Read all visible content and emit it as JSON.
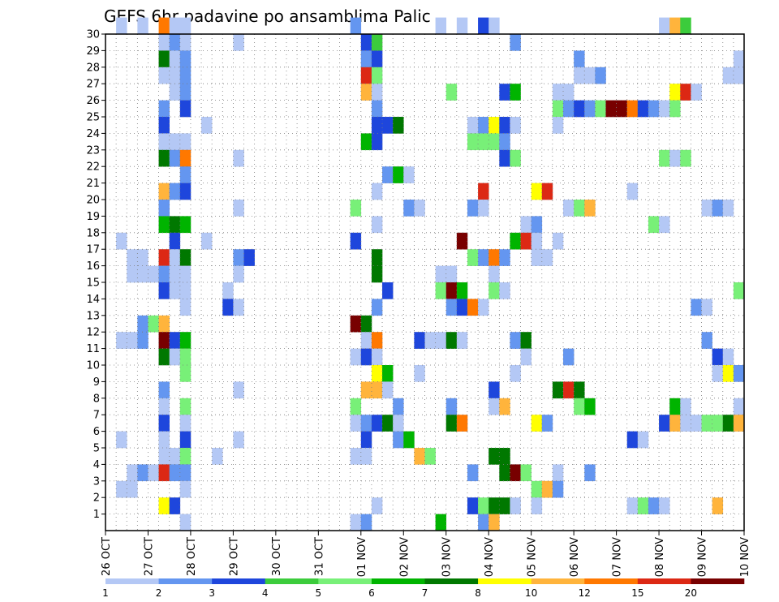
{
  "chart_data": {
    "type": "heatmap",
    "title": "GEFS 6hr padavine po ansamblima Palic",
    "xlabel": "",
    "ylabel": "",
    "x_ticks": [
      "26 OCT",
      "27 OCT",
      "28 OCT",
      "29 OCT",
      "30 OCT",
      "31 OCT",
      "01 NOV",
      "02 NOV",
      "03 NOV",
      "04 NOV",
      "05 NOV",
      "06 NOV",
      "07 NOV",
      "08 NOV",
      "09 NOV",
      "10 NOV"
    ],
    "y_ticks": [
      1,
      2,
      3,
      4,
      5,
      6,
      7,
      8,
      9,
      10,
      11,
      12,
      13,
      14,
      15,
      16,
      17,
      18,
      19,
      20,
      21,
      22,
      23,
      24,
      25,
      26,
      27,
      28,
      29,
      30
    ],
    "xlim": [
      0,
      60
    ],
    "ylim": [
      0,
      30
    ],
    "grid": true,
    "legend": "colorbar-bottom",
    "levels": [
      1,
      2,
      3,
      4,
      5,
      6,
      7,
      8,
      10,
      12,
      15,
      20
    ],
    "level_labels": [
      "1",
      "2",
      "3",
      "4",
      "5",
      "6",
      "7",
      "8",
      "10",
      "12",
      "15",
      "20"
    ],
    "colors": [
      "#b4c8f5",
      "#6496f0",
      "#1e46dc",
      "#3ccc3c",
      "#78f078",
      "#00b400",
      "#007800",
      "#ffff00",
      "#ffb43c",
      "#ff7800",
      "#dc2814",
      "#780000"
    ],
    "cells": [
      [
        1,
        30,
        0
      ],
      [
        3,
        30,
        0
      ],
      [
        5,
        30,
        9
      ],
      [
        6,
        30,
        0
      ],
      [
        7,
        30,
        0
      ],
      [
        23,
        30,
        1
      ],
      [
        31,
        30,
        0
      ],
      [
        33,
        30,
        0
      ],
      [
        35,
        30,
        2
      ],
      [
        36,
        30,
        0
      ],
      [
        52,
        30,
        0
      ],
      [
        53,
        30,
        8
      ],
      [
        54,
        30,
        3
      ],
      [
        5,
        29,
        0
      ],
      [
        6,
        29,
        1
      ],
      [
        7,
        29,
        0
      ],
      [
        12,
        29,
        0
      ],
      [
        24,
        29,
        2
      ],
      [
        25,
        29,
        3
      ],
      [
        38,
        29,
        1
      ],
      [
        5,
        28,
        6
      ],
      [
        6,
        28,
        0
      ],
      [
        7,
        28,
        1
      ],
      [
        24,
        28,
        1
      ],
      [
        25,
        28,
        2
      ],
      [
        44,
        28,
        1
      ],
      [
        59,
        28,
        0
      ],
      [
        5,
        27,
        0
      ],
      [
        6,
        27,
        0
      ],
      [
        7,
        27,
        1
      ],
      [
        24,
        27,
        10
      ],
      [
        25,
        27,
        4
      ],
      [
        44,
        27,
        0
      ],
      [
        45,
        27,
        0
      ],
      [
        46,
        27,
        1
      ],
      [
        58,
        27,
        0
      ],
      [
        59,
        27,
        0
      ],
      [
        6,
        26,
        0
      ],
      [
        7,
        26,
        1
      ],
      [
        24,
        26,
        8
      ],
      [
        25,
        26,
        0
      ],
      [
        32,
        26,
        4
      ],
      [
        37,
        26,
        2
      ],
      [
        38,
        26,
        5
      ],
      [
        42,
        26,
        0
      ],
      [
        43,
        26,
        0
      ],
      [
        53,
        26,
        7
      ],
      [
        54,
        26,
        10
      ],
      [
        55,
        26,
        0
      ],
      [
        5,
        25,
        1
      ],
      [
        7,
        25,
        2
      ],
      [
        25,
        25,
        1
      ],
      [
        42,
        25,
        4
      ],
      [
        43,
        25,
        1
      ],
      [
        44,
        25,
        2
      ],
      [
        45,
        25,
        1
      ],
      [
        46,
        25,
        4
      ],
      [
        47,
        25,
        11
      ],
      [
        48,
        25,
        11
      ],
      [
        49,
        25,
        9
      ],
      [
        50,
        25,
        2
      ],
      [
        51,
        25,
        1
      ],
      [
        52,
        25,
        0
      ],
      [
        53,
        25,
        4
      ],
      [
        5,
        24,
        2
      ],
      [
        9,
        24,
        0
      ],
      [
        25,
        24,
        2
      ],
      [
        26,
        24,
        2
      ],
      [
        27,
        24,
        6
      ],
      [
        34,
        24,
        0
      ],
      [
        35,
        24,
        1
      ],
      [
        36,
        24,
        7
      ],
      [
        37,
        24,
        2
      ],
      [
        38,
        24,
        0
      ],
      [
        42,
        24,
        0
      ],
      [
        5,
        23,
        0
      ],
      [
        6,
        23,
        0
      ],
      [
        7,
        23,
        0
      ],
      [
        24,
        23,
        5
      ],
      [
        25,
        23,
        2
      ],
      [
        34,
        23,
        4
      ],
      [
        35,
        23,
        4
      ],
      [
        36,
        23,
        4
      ],
      [
        37,
        23,
        1
      ],
      [
        5,
        22,
        6
      ],
      [
        6,
        22,
        1
      ],
      [
        7,
        22,
        9
      ],
      [
        12,
        22,
        0
      ],
      [
        37,
        22,
        2
      ],
      [
        38,
        22,
        4
      ],
      [
        52,
        22,
        4
      ],
      [
        53,
        22,
        0
      ],
      [
        54,
        22,
        4
      ],
      [
        7,
        21,
        1
      ],
      [
        26,
        21,
        1
      ],
      [
        27,
        21,
        5
      ],
      [
        28,
        21,
        0
      ],
      [
        5,
        20,
        8
      ],
      [
        6,
        20,
        1
      ],
      [
        7,
        20,
        2
      ],
      [
        25,
        20,
        0
      ],
      [
        35,
        20,
        10
      ],
      [
        40,
        20,
        7
      ],
      [
        41,
        20,
        10
      ],
      [
        49,
        20,
        0
      ],
      [
        5,
        19,
        1
      ],
      [
        12,
        19,
        0
      ],
      [
        23,
        19,
        4
      ],
      [
        28,
        19,
        1
      ],
      [
        29,
        19,
        0
      ],
      [
        34,
        19,
        1
      ],
      [
        35,
        19,
        0
      ],
      [
        43,
        19,
        0
      ],
      [
        44,
        19,
        4
      ],
      [
        45,
        19,
        8
      ],
      [
        56,
        19,
        0
      ],
      [
        57,
        19,
        1
      ],
      [
        58,
        19,
        0
      ],
      [
        5,
        18,
        5
      ],
      [
        6,
        18,
        6
      ],
      [
        7,
        18,
        5
      ],
      [
        25,
        18,
        0
      ],
      [
        39,
        18,
        0
      ],
      [
        40,
        18,
        1
      ],
      [
        51,
        18,
        4
      ],
      [
        52,
        18,
        0
      ],
      [
        1,
        17,
        0
      ],
      [
        6,
        17,
        2
      ],
      [
        9,
        17,
        0
      ],
      [
        23,
        17,
        2
      ],
      [
        33,
        17,
        11
      ],
      [
        38,
        17,
        5
      ],
      [
        39,
        17,
        10
      ],
      [
        40,
        17,
        0
      ],
      [
        42,
        17,
        0
      ],
      [
        2,
        16,
        0
      ],
      [
        3,
        16,
        0
      ],
      [
        5,
        16,
        10
      ],
      [
        6,
        16,
        0
      ],
      [
        7,
        16,
        6
      ],
      [
        12,
        16,
        1
      ],
      [
        13,
        16,
        2
      ],
      [
        25,
        16,
        6
      ],
      [
        34,
        16,
        4
      ],
      [
        35,
        16,
        1
      ],
      [
        36,
        16,
        9
      ],
      [
        37,
        16,
        1
      ],
      [
        40,
        16,
        0
      ],
      [
        41,
        16,
        0
      ],
      [
        2,
        15,
        0
      ],
      [
        3,
        15,
        0
      ],
      [
        4,
        15,
        0
      ],
      [
        5,
        15,
        1
      ],
      [
        6,
        15,
        0
      ],
      [
        7,
        15,
        0
      ],
      [
        12,
        15,
        0
      ],
      [
        25,
        15,
        6
      ],
      [
        31,
        15,
        0
      ],
      [
        32,
        15,
        0
      ],
      [
        36,
        15,
        0
      ],
      [
        5,
        14,
        2
      ],
      [
        6,
        14,
        0
      ],
      [
        7,
        14,
        0
      ],
      [
        11,
        14,
        0
      ],
      [
        26,
        14,
        2
      ],
      [
        31,
        14,
        4
      ],
      [
        32,
        14,
        11
      ],
      [
        33,
        14,
        5
      ],
      [
        36,
        14,
        4
      ],
      [
        37,
        14,
        0
      ],
      [
        59,
        14,
        4
      ],
      [
        7,
        13,
        0
      ],
      [
        11,
        13,
        2
      ],
      [
        12,
        13,
        0
      ],
      [
        25,
        13,
        1
      ],
      [
        32,
        13,
        1
      ],
      [
        33,
        13,
        2
      ],
      [
        34,
        13,
        9
      ],
      [
        35,
        13,
        0
      ],
      [
        55,
        13,
        1
      ],
      [
        56,
        13,
        0
      ],
      [
        3,
        12,
        1
      ],
      [
        4,
        12,
        4
      ],
      [
        5,
        12,
        8
      ],
      [
        23,
        12,
        11
      ],
      [
        24,
        12,
        6
      ],
      [
        1,
        11,
        0
      ],
      [
        2,
        11,
        0
      ],
      [
        3,
        11,
        1
      ],
      [
        5,
        11,
        11
      ],
      [
        6,
        11,
        2
      ],
      [
        7,
        11,
        5
      ],
      [
        24,
        11,
        0
      ],
      [
        25,
        11,
        9
      ],
      [
        29,
        11,
        2
      ],
      [
        30,
        11,
        0
      ],
      [
        31,
        11,
        0
      ],
      [
        32,
        11,
        6
      ],
      [
        33,
        11,
        0
      ],
      [
        38,
        11,
        1
      ],
      [
        39,
        11,
        6
      ],
      [
        56,
        11,
        1
      ],
      [
        5,
        10,
        6
      ],
      [
        6,
        10,
        0
      ],
      [
        7,
        10,
        4
      ],
      [
        23,
        10,
        0
      ],
      [
        24,
        10,
        2
      ],
      [
        25,
        10,
        0
      ],
      [
        39,
        10,
        0
      ],
      [
        43,
        10,
        1
      ],
      [
        57,
        10,
        2
      ],
      [
        58,
        10,
        0
      ],
      [
        7,
        9,
        4
      ],
      [
        25,
        9,
        7
      ],
      [
        26,
        9,
        5
      ],
      [
        29,
        9,
        0
      ],
      [
        38,
        9,
        0
      ],
      [
        57,
        9,
        0
      ],
      [
        58,
        9,
        7
      ],
      [
        59,
        9,
        1
      ],
      [
        5,
        8,
        1
      ],
      [
        12,
        8,
        0
      ],
      [
        24,
        8,
        8
      ],
      [
        25,
        8,
        8
      ],
      [
        26,
        8,
        0
      ],
      [
        36,
        8,
        2
      ],
      [
        42,
        8,
        6
      ],
      [
        43,
        8,
        10
      ],
      [
        44,
        8,
        6
      ],
      [
        5,
        7,
        0
      ],
      [
        7,
        7,
        4
      ],
      [
        23,
        7,
        4
      ],
      [
        27,
        7,
        1
      ],
      [
        32,
        7,
        1
      ],
      [
        36,
        7,
        0
      ],
      [
        37,
        7,
        8
      ],
      [
        44,
        7,
        4
      ],
      [
        45,
        7,
        5
      ],
      [
        53,
        7,
        5
      ],
      [
        54,
        7,
        0
      ],
      [
        59,
        7,
        0
      ],
      [
        5,
        6,
        2
      ],
      [
        7,
        6,
        0
      ],
      [
        23,
        6,
        0
      ],
      [
        24,
        6,
        1
      ],
      [
        25,
        6,
        2
      ],
      [
        26,
        6,
        6
      ],
      [
        27,
        6,
        0
      ],
      [
        32,
        6,
        6
      ],
      [
        33,
        6,
        9
      ],
      [
        40,
        6,
        7
      ],
      [
        41,
        6,
        1
      ],
      [
        52,
        6,
        2
      ],
      [
        53,
        6,
        8
      ],
      [
        54,
        6,
        0
      ],
      [
        55,
        6,
        0
      ],
      [
        56,
        6,
        4
      ],
      [
        57,
        6,
        4
      ],
      [
        58,
        6,
        6
      ],
      [
        59,
        6,
        8
      ],
      [
        1,
        5,
        0
      ],
      [
        5,
        5,
        0
      ],
      [
        7,
        5,
        2
      ],
      [
        12,
        5,
        0
      ],
      [
        24,
        5,
        2
      ],
      [
        27,
        5,
        1
      ],
      [
        28,
        5,
        5
      ],
      [
        49,
        5,
        2
      ],
      [
        50,
        5,
        0
      ],
      [
        5,
        4,
        0
      ],
      [
        6,
        4,
        0
      ],
      [
        7,
        4,
        4
      ],
      [
        10,
        4,
        0
      ],
      [
        23,
        4,
        0
      ],
      [
        24,
        4,
        0
      ],
      [
        29,
        4,
        8
      ],
      [
        30,
        4,
        4
      ],
      [
        36,
        4,
        6
      ],
      [
        37,
        4,
        6
      ],
      [
        2,
        3,
        0
      ],
      [
        3,
        3,
        1
      ],
      [
        4,
        3,
        0
      ],
      [
        5,
        3,
        10
      ],
      [
        6,
        3,
        1
      ],
      [
        7,
        3,
        1
      ],
      [
        34,
        3,
        1
      ],
      [
        37,
        3,
        6
      ],
      [
        38,
        3,
        11
      ],
      [
        39,
        3,
        4
      ],
      [
        42,
        3,
        0
      ],
      [
        45,
        3,
        1
      ],
      [
        1,
        2,
        0
      ],
      [
        2,
        2,
        0
      ],
      [
        7,
        2,
        0
      ],
      [
        40,
        2,
        4
      ],
      [
        41,
        2,
        8
      ],
      [
        42,
        2,
        1
      ],
      [
        5,
        1,
        7
      ],
      [
        6,
        1,
        2
      ],
      [
        25,
        1,
        0
      ],
      [
        34,
        1,
        2
      ],
      [
        35,
        1,
        4
      ],
      [
        36,
        1,
        6
      ],
      [
        37,
        1,
        6
      ],
      [
        38,
        1,
        0
      ],
      [
        40,
        1,
        0
      ],
      [
        49,
        1,
        0
      ],
      [
        50,
        1,
        4
      ],
      [
        51,
        1,
        1
      ],
      [
        52,
        1,
        0
      ],
      [
        57,
        1,
        8
      ],
      [
        7,
        0,
        0
      ],
      [
        23,
        0,
        0
      ],
      [
        24,
        0,
        1
      ],
      [
        31,
        0,
        5
      ],
      [
        35,
        0,
        1
      ],
      [
        36,
        0,
        8
      ]
    ]
  }
}
